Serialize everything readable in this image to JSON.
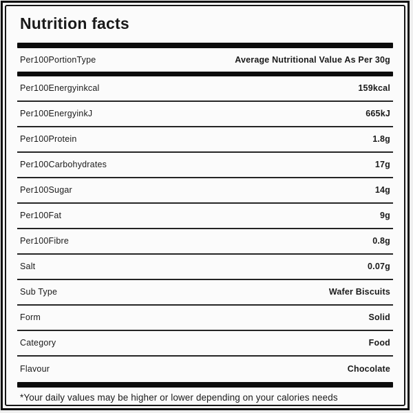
{
  "title": "Nutrition facts",
  "header": {
    "label": "Per100PortionType",
    "value": "Average Nutritional Value As Per 30g"
  },
  "rows": [
    {
      "label": "Per100Energyinkcal",
      "value": "159kcal"
    },
    {
      "label": "Per100EnergyinkJ",
      "value": "665kJ"
    },
    {
      "label": "Per100Protein",
      "value": "1.8g"
    },
    {
      "label": "Per100Carbohydrates",
      "value": "17g"
    },
    {
      "label": "Per100Sugar",
      "value": "14g"
    },
    {
      "label": "Per100Fat",
      "value": "9g"
    },
    {
      "label": "Per100Fibre",
      "value": "0.8g"
    },
    {
      "label": "Salt",
      "value": "0.07g"
    },
    {
      "label": "Sub Type",
      "value": "Wafer Biscuits"
    },
    {
      "label": "Form",
      "value": "Solid"
    },
    {
      "label": "Category",
      "value": "Food"
    },
    {
      "label": "Flavour",
      "value": "Chocolate"
    }
  ],
  "footnote": "*Your daily values may be higher or lower depending on your calories needs",
  "colors": {
    "text": "#1a1a1a",
    "bar": "#0c0c0c",
    "divider": "#242424",
    "card_background": "#fbfbfb",
    "border": "#0e0e0e"
  }
}
